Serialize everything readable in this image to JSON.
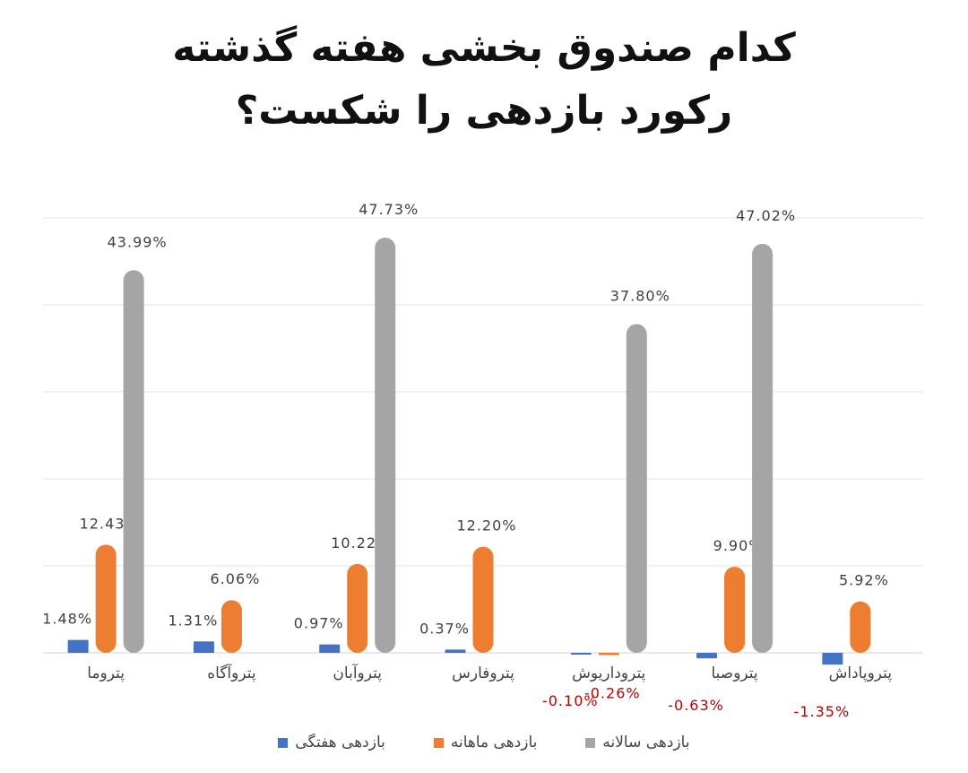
{
  "title_line1": "کدام صندوق بخشی هفته گذشته",
  "title_line2": "رکورد بازدهی را شکست؟",
  "chart_data": {
    "type": "bar",
    "categories": [
      "پتروما",
      "پتروآگاه",
      "پتروآبان",
      "پتروفارس",
      "پتروداریوش",
      "پتروصبا",
      "پتروپاداش"
    ],
    "ylim": [
      -2,
      50
    ],
    "grid": true,
    "legend_position": "bottom",
    "series": [
      {
        "name": "بازدهی هفتگی",
        "color": "#4472C4",
        "values": [
          1.48,
          1.31,
          0.97,
          0.37,
          -0.1,
          -0.63,
          -1.35
        ],
        "labels": [
          "1.48%",
          "1.31%",
          "0.97%",
          "0.37%",
          "-0.10%",
          "-0.63%",
          "-1.35%"
        ]
      },
      {
        "name": "بازدهی ماهانه",
        "color": "#ED7D31",
        "values": [
          12.43,
          6.06,
          10.22,
          12.2,
          -0.26,
          9.9,
          5.92
        ],
        "labels": [
          "12.43%",
          "6.06%",
          "10.22%",
          "12.20%",
          "-0.26%",
          "9.90%",
          "5.92%"
        ]
      },
      {
        "name": "بازدهی سالانه",
        "color": "#A5A5A5",
        "values": [
          43.99,
          null,
          47.73,
          null,
          37.8,
          47.02,
          null
        ],
        "labels": [
          "43.99%",
          "",
          "47.73%",
          "",
          "37.80%",
          "47.02%",
          ""
        ]
      }
    ],
    "negative_label_color": "#C00000",
    "label_color": "#404040"
  }
}
